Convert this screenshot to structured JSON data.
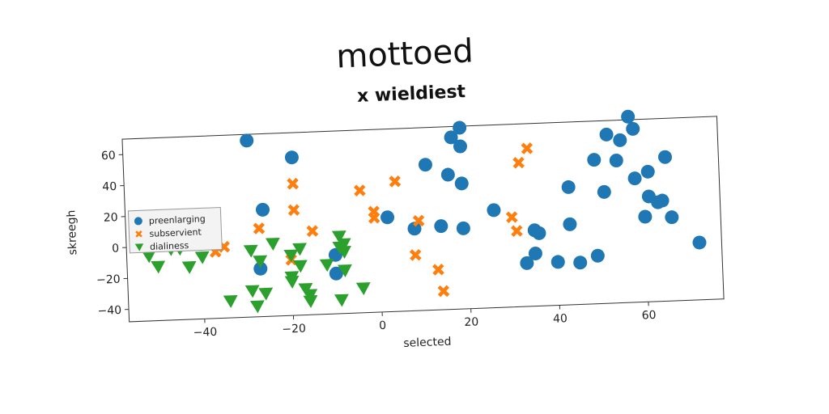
{
  "chart_data": {
    "type": "scatter",
    "title": "mottoed",
    "subtitle": "x wieldiest",
    "xlabel": "selected",
    "ylabel": "skreegh",
    "xlim": [
      -57,
      77
    ],
    "ylim": [
      -48,
      70
    ],
    "xticks": [
      -40,
      -20,
      0,
      20,
      40,
      60
    ],
    "yticks": [
      -40,
      -20,
      0,
      20,
      40,
      60
    ],
    "grid": false,
    "legend_position": "center-left",
    "series": [
      {
        "name": "preenlarging",
        "marker": "circle",
        "color": "#1f77b4",
        "points": [
          [
            -29,
            66
          ],
          [
            -19,
            54
          ],
          [
            -26,
            21
          ],
          [
            -27,
            -17
          ],
          [
            -10,
            -10
          ],
          [
            -10,
            -22
          ],
          [
            2,
            13
          ],
          [
            8,
            5
          ],
          [
            11,
            46
          ],
          [
            14,
            6
          ],
          [
            16,
            39
          ],
          [
            17,
            63
          ],
          [
            19,
            69
          ],
          [
            19,
            57
          ],
          [
            19,
            33
          ],
          [
            19,
            4
          ],
          [
            26,
            15
          ],
          [
            35,
            1
          ],
          [
            36,
            -1
          ],
          [
            35,
            -14
          ],
          [
            33,
            -20
          ],
          [
            40,
            -20
          ],
          [
            43,
            4
          ],
          [
            43,
            28
          ],
          [
            45,
            -21
          ],
          [
            49,
            -17
          ],
          [
            49,
            45
          ],
          [
            51,
            24
          ],
          [
            52,
            61
          ],
          [
            54,
            44
          ],
          [
            55,
            57
          ],
          [
            57,
            72
          ],
          [
            58,
            64
          ],
          [
            58,
            32
          ],
          [
            60,
            7
          ],
          [
            61,
            36
          ],
          [
            61,
            20
          ],
          [
            63,
            16
          ],
          [
            64,
            17
          ],
          [
            65,
            45
          ],
          [
            66,
            6
          ],
          [
            72,
            -11
          ]
        ]
      },
      {
        "name": "subservient",
        "marker": "x",
        "color": "#ff7f0e",
        "points": [
          [
            -19,
            37
          ],
          [
            -19,
            20
          ],
          [
            -27,
            9
          ],
          [
            -15,
            6
          ],
          [
            -35,
            -2
          ],
          [
            -37,
            -5
          ],
          [
            -20,
            -12
          ],
          [
            -4,
            31
          ],
          [
            -1,
            17
          ],
          [
            -1,
            13
          ],
          [
            4,
            36
          ],
          [
            9,
            10
          ],
          [
            8,
            -12
          ],
          [
            13,
            -22
          ],
          [
            14,
            -36
          ],
          [
            30,
            10
          ],
          [
            31,
            1
          ],
          [
            32,
            45
          ],
          [
            34,
            54
          ]
        ]
      },
      {
        "name": "dialiness",
        "marker": "triangle",
        "color": "#2ca02c",
        "points": [
          [
            -52,
            -6
          ],
          [
            -50,
            -13
          ],
          [
            -43,
            -14
          ],
          [
            -47,
            -2
          ],
          [
            -45,
            -2
          ],
          [
            -40,
            -8
          ],
          [
            -34,
            -37
          ],
          [
            -29,
            -31
          ],
          [
            -28,
            -41
          ],
          [
            -26,
            -33
          ],
          [
            -29,
            -5
          ],
          [
            -27,
            -12
          ],
          [
            -24,
            -1
          ],
          [
            -20,
            -9
          ],
          [
            -18,
            -5
          ],
          [
            -18,
            -16
          ],
          [
            -20,
            -23
          ],
          [
            -20,
            -26
          ],
          [
            -17,
            -31
          ],
          [
            -16,
            -39
          ],
          [
            -16,
            -35
          ],
          [
            -12,
            -16
          ],
          [
            -9,
            2
          ],
          [
            -8,
            -8
          ],
          [
            -8,
            -20
          ],
          [
            -9,
            -39
          ],
          [
            -4,
            -32
          ],
          [
            -8,
            -3
          ],
          [
            -9,
            -5
          ]
        ]
      }
    ]
  }
}
